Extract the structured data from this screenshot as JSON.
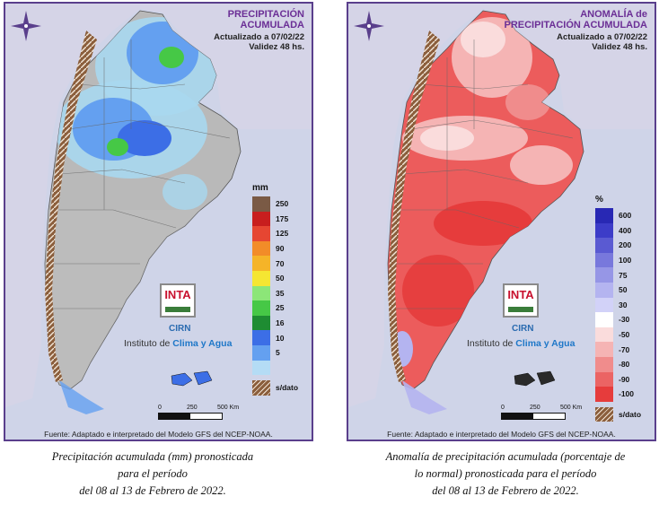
{
  "left_panel": {
    "title_line1": "PRECIPITACIÓN",
    "title_line2": "ACUMULADA",
    "updated": "Actualizado a 07/02/22",
    "validity": "Validez 48 hs.",
    "legend_unit": "mm",
    "legend": [
      {
        "label": "250",
        "color": "#7a5a45"
      },
      {
        "label": "175",
        "color": "#c81e1e"
      },
      {
        "label": "125",
        "color": "#e64632"
      },
      {
        "label": "90",
        "color": "#f28c28"
      },
      {
        "label": "70",
        "color": "#f5b428"
      },
      {
        "label": "50",
        "color": "#f5e632"
      },
      {
        "label": "35",
        "color": "#8ce678"
      },
      {
        "label": "25",
        "color": "#46c846"
      },
      {
        "label": "16",
        "color": "#1e8c32"
      },
      {
        "label": "10",
        "color": "#3c6ee6"
      },
      {
        "label": "5",
        "color": "#64a0f0"
      },
      {
        "label": "",
        "color": "#b4dcf5"
      },
      {
        "label": "s/dato",
        "color": "#8b5e3c"
      }
    ],
    "source": "Fuente: Adaptado e interpretado del Modelo GFS del NCEP-NOAA.",
    "caption": [
      "Precipitación acumulada (mm) pronosticada",
      "para el período",
      "del 08 al 13 de Febrero de 2022."
    ]
  },
  "right_panel": {
    "title_line1": "ANOMALÍA de",
    "title_line2": "PRECIPITACIÓN ACUMULADA",
    "updated": "Actualizado a 07/02/22",
    "validity": "Validez 48 hs.",
    "legend_unit": "%",
    "legend": [
      {
        "label": "600",
        "color": "#2828b4"
      },
      {
        "label": "400",
        "color": "#3c3cc8"
      },
      {
        "label": "200",
        "color": "#5a5ad2"
      },
      {
        "label": "100",
        "color": "#7878dc"
      },
      {
        "label": "75",
        "color": "#9696e6"
      },
      {
        "label": "50",
        "color": "#b4b4f0"
      },
      {
        "label": "30",
        "color": "#d2d2f8"
      },
      {
        "label": "-30",
        "color": "#ffffff"
      },
      {
        "label": "-50",
        "color": "#fadcdc"
      },
      {
        "label": "-70",
        "color": "#f5b4b4"
      },
      {
        "label": "-80",
        "color": "#f08c8c"
      },
      {
        "label": "-90",
        "color": "#eb6464"
      },
      {
        "label": "-100",
        "color": "#e63c3c"
      },
      {
        "label": "s/dato",
        "color": "#8b5e3c"
      }
    ],
    "source": "Fuente: Adaptado e interpretado del Modelo GFS del NCEP-NOAA.",
    "caption": [
      "Anomalía de precipitación acumulada (porcentaje de",
      "lo normal) pronosticada para el período",
      "del 08 al 13 de Febrero de 2022."
    ]
  },
  "branding": {
    "inta": "INTA",
    "cirn": "CIRN",
    "instituto_prefix": "Instituto de ",
    "instituto_highlight": "Clima y Agua"
  },
  "scale": {
    "labels": [
      "0",
      "250",
      "500 Km"
    ]
  }
}
